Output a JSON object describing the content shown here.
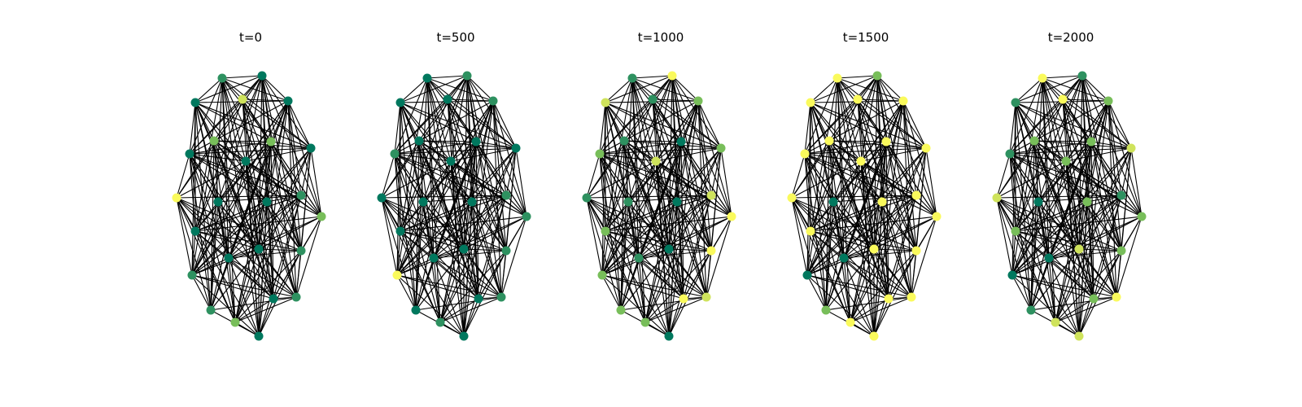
{
  "figure": {
    "panels": [
      {
        "title": "t=0"
      },
      {
        "title": "t=500"
      },
      {
        "title": "t=1000"
      },
      {
        "title": "t=1500"
      },
      {
        "title": "t=2000"
      }
    ]
  },
  "colors": {
    "dark_green": "#00785e",
    "mid_green": "#2e9160",
    "light_green": "#78be5a",
    "yellow_green": "#cfe35c",
    "yellow": "#fafa5c",
    "edge": "#000000"
  },
  "chart_data": {
    "type": "network-snapshots",
    "node_count": 25,
    "node_color_levels": [
      "dark_green",
      "mid_green",
      "light_green",
      "yellow_green",
      "yellow"
    ],
    "snapshots": [
      {
        "t": 0,
        "node_levels": [
          1,
          0,
          0,
          3,
          0,
          2,
          2,
          0,
          0,
          0,
          4,
          0,
          0,
          1,
          2,
          0,
          0,
          0,
          1,
          1,
          1,
          2,
          0,
          1,
          0
        ]
      },
      {
        "t": 500,
        "node_levels": [
          0,
          1,
          0,
          0,
          1,
          0,
          0,
          1,
          0,
          0,
          0,
          0,
          0,
          1,
          1,
          0,
          0,
          0,
          1,
          4,
          0,
          1,
          0,
          1,
          0
        ]
      },
      {
        "t": 1000,
        "node_levels": [
          1,
          4,
          3,
          1,
          2,
          1,
          0,
          2,
          3,
          2,
          1,
          1,
          0,
          3,
          4,
          2,
          1,
          0,
          4,
          2,
          2,
          2,
          4,
          3,
          0
        ]
      },
      {
        "t": 1500,
        "node_levels": [
          4,
          2,
          4,
          4,
          4,
          4,
          4,
          4,
          4,
          4,
          4,
          0,
          4,
          4,
          4,
          4,
          0,
          4,
          4,
          0,
          2,
          4,
          4,
          4,
          4
        ]
      },
      {
        "t": 2000,
        "node_levels": [
          4,
          1,
          1,
          4,
          2,
          2,
          2,
          1,
          2,
          3,
          3,
          0,
          2,
          1,
          2,
          2,
          0,
          3,
          2,
          0,
          1,
          3,
          2,
          4,
          3
        ]
      }
    ]
  }
}
